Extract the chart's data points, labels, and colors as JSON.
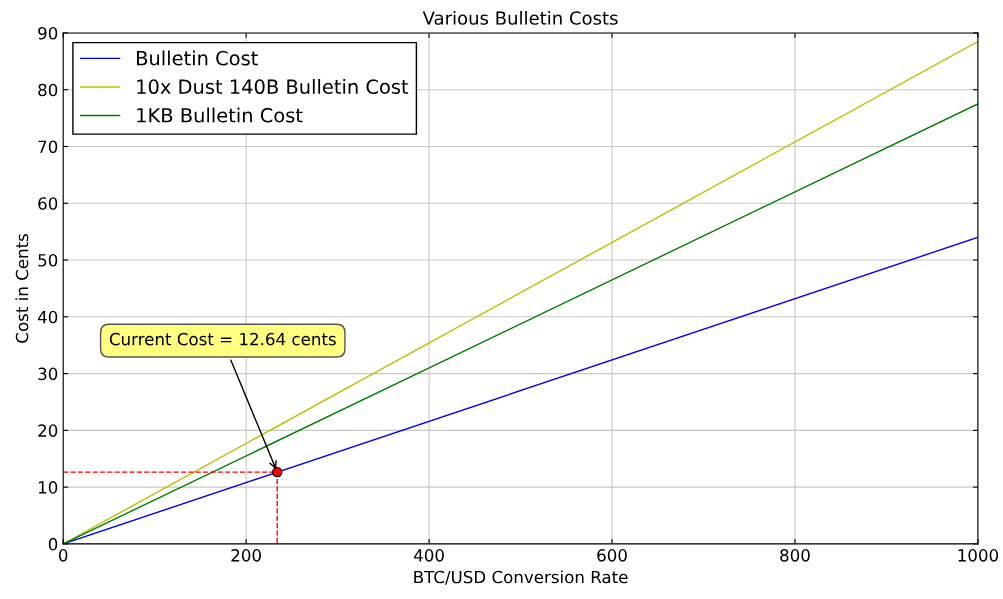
{
  "chart_data": {
    "type": "line",
    "title": "Various Bulletin Costs",
    "xlabel": "BTC/USD Conversion Rate",
    "ylabel": "Cost in Cents",
    "xlim": [
      0,
      1000
    ],
    "ylim": [
      0,
      90
    ],
    "xticks": [
      0,
      200,
      400,
      600,
      800,
      1000
    ],
    "yticks": [
      0,
      10,
      20,
      30,
      40,
      50,
      60,
      70,
      80,
      90
    ],
    "grid": true,
    "legend": "top left",
    "series": [
      {
        "name": "Bulletin Cost",
        "color": "#0000ff",
        "x": [
          0,
          1000
        ],
        "values": [
          0,
          54
        ]
      },
      {
        "name": "10x Dust 140B Bulletin Cost",
        "color": "#bfbf00",
        "x": [
          0,
          1000
        ],
        "values": [
          0,
          88.5
        ]
      },
      {
        "name": "1KB Bulletin Cost",
        "color": "#008000",
        "x": [
          0,
          1000
        ],
        "values": [
          0,
          77.5
        ]
      },
      {
        "color": "#ff0000",
        "line_style": "dashed",
        "x": [
          0,
          234,
          234
        ],
        "values": [
          12.64,
          12.64,
          0
        ]
      },
      {
        "type": "scatter",
        "marker": "circle",
        "color": "#ff0000",
        "x": [
          234
        ],
        "values": [
          12.64
        ]
      }
    ],
    "annotations": [
      {
        "text": "Current Cost = 12.64 cents",
        "x": 234,
        "y": 12.64
      }
    ]
  }
}
